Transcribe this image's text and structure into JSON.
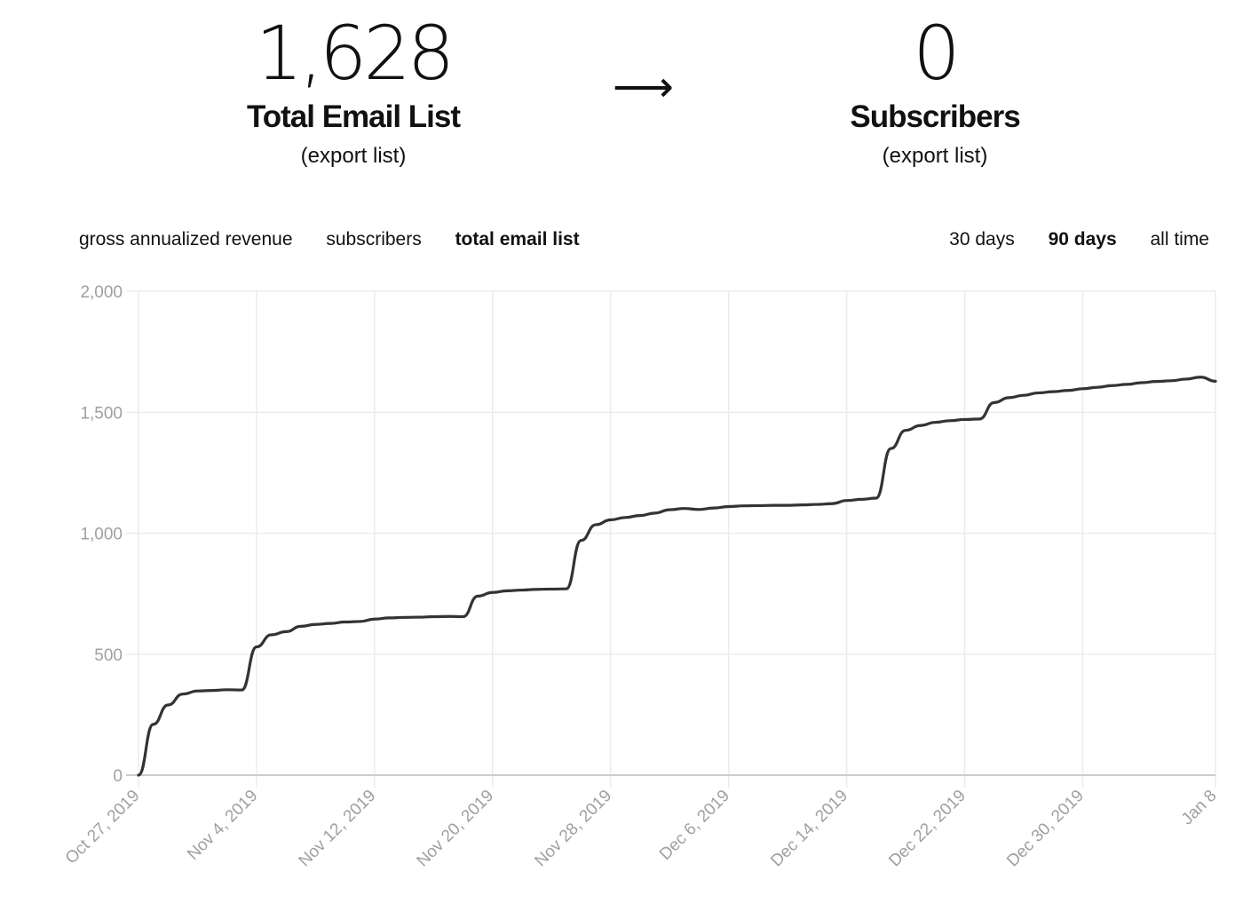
{
  "stats": {
    "left": {
      "value": "1,628",
      "label": "Total Email List",
      "link": "(export list)"
    },
    "arrow": "⟶",
    "right": {
      "value": "0",
      "label": "Subscribers",
      "link": "(export list)"
    }
  },
  "metric_tabs": [
    {
      "label": "gross annualized revenue",
      "active": false
    },
    {
      "label": "subscribers",
      "active": false
    },
    {
      "label": "total email list",
      "active": true
    }
  ],
  "range_tabs": [
    {
      "label": "30 days",
      "active": false
    },
    {
      "label": "90 days",
      "active": true
    },
    {
      "label": "all time",
      "active": false
    }
  ],
  "colors": {
    "line": "#333333",
    "grid": "#ececec",
    "axis": "#cccccc",
    "tick_text": "#a0a0a0"
  },
  "chart_data": {
    "type": "line",
    "grid": true,
    "ylim": [
      0,
      2000
    ],
    "yticks": [
      0,
      500,
      1000,
      1500,
      2000
    ],
    "ytick_labels": [
      "0",
      "500",
      "1,000",
      "1,500",
      "2,000"
    ],
    "xlim": [
      "2019-10-27",
      "2020-01-08"
    ],
    "xtick_dates": [
      "2019-10-27",
      "2019-11-04",
      "2019-11-12",
      "2019-11-20",
      "2019-11-28",
      "2019-12-06",
      "2019-12-14",
      "2019-12-22",
      "2019-12-30",
      "2020-01-08"
    ],
    "xtick_labels": [
      "Oct 27, 2019",
      "Nov 4, 2019",
      "Nov 12, 2019",
      "Nov 20, 2019",
      "Nov 28, 2019",
      "Dec 6, 2019",
      "Dec 14, 2019",
      "Dec 22, 2019",
      "Dec 30, 2019",
      "Jan 8"
    ],
    "series": [
      {
        "x": [
          "2019-10-27",
          "2019-10-28",
          "2019-10-29",
          "2019-10-30",
          "2019-10-31",
          "2019-11-01",
          "2019-11-02",
          "2019-11-03",
          "2019-11-04",
          "2019-11-05",
          "2019-11-06",
          "2019-11-07",
          "2019-11-08",
          "2019-11-09",
          "2019-11-10",
          "2019-11-11",
          "2019-11-12",
          "2019-11-13",
          "2019-11-14",
          "2019-11-15",
          "2019-11-16",
          "2019-11-17",
          "2019-11-18",
          "2019-11-19",
          "2019-11-20",
          "2019-11-21",
          "2019-11-22",
          "2019-11-23",
          "2019-11-24",
          "2019-11-25",
          "2019-11-26",
          "2019-11-27",
          "2019-11-28",
          "2019-11-29",
          "2019-11-30",
          "2019-12-01",
          "2019-12-02",
          "2019-12-03",
          "2019-12-04",
          "2019-12-05",
          "2019-12-06",
          "2019-12-07",
          "2019-12-08",
          "2019-12-09",
          "2019-12-10",
          "2019-12-11",
          "2019-12-12",
          "2019-12-13",
          "2019-12-14",
          "2019-12-15",
          "2019-12-16",
          "2019-12-17",
          "2019-12-18",
          "2019-12-19",
          "2019-12-20",
          "2019-12-21",
          "2019-12-22",
          "2019-12-23",
          "2019-12-24",
          "2019-12-25",
          "2019-12-26",
          "2019-12-27",
          "2019-12-28",
          "2019-12-29",
          "2019-12-30",
          "2019-12-31",
          "2020-01-01",
          "2020-01-02",
          "2020-01-03",
          "2020-01-04",
          "2020-01-05",
          "2020-01-06",
          "2020-01-07",
          "2020-01-08"
        ],
        "y": [
          0,
          210,
          290,
          335,
          348,
          350,
          353,
          352,
          530,
          580,
          593,
          615,
          623,
          627,
          633,
          635,
          645,
          650,
          652,
          653,
          655,
          656,
          655,
          740,
          755,
          762,
          765,
          768,
          769,
          770,
          970,
          1035,
          1055,
          1065,
          1073,
          1083,
          1097,
          1102,
          1098,
          1104,
          1110,
          1113,
          1114,
          1115,
          1115,
          1117,
          1119,
          1122,
          1135,
          1140,
          1145,
          1350,
          1425,
          1445,
          1458,
          1465,
          1470,
          1472,
          1540,
          1560,
          1570,
          1580,
          1585,
          1590,
          1597,
          1603,
          1610,
          1615,
          1622,
          1627,
          1630,
          1637,
          1645,
          1628
        ]
      }
    ]
  }
}
